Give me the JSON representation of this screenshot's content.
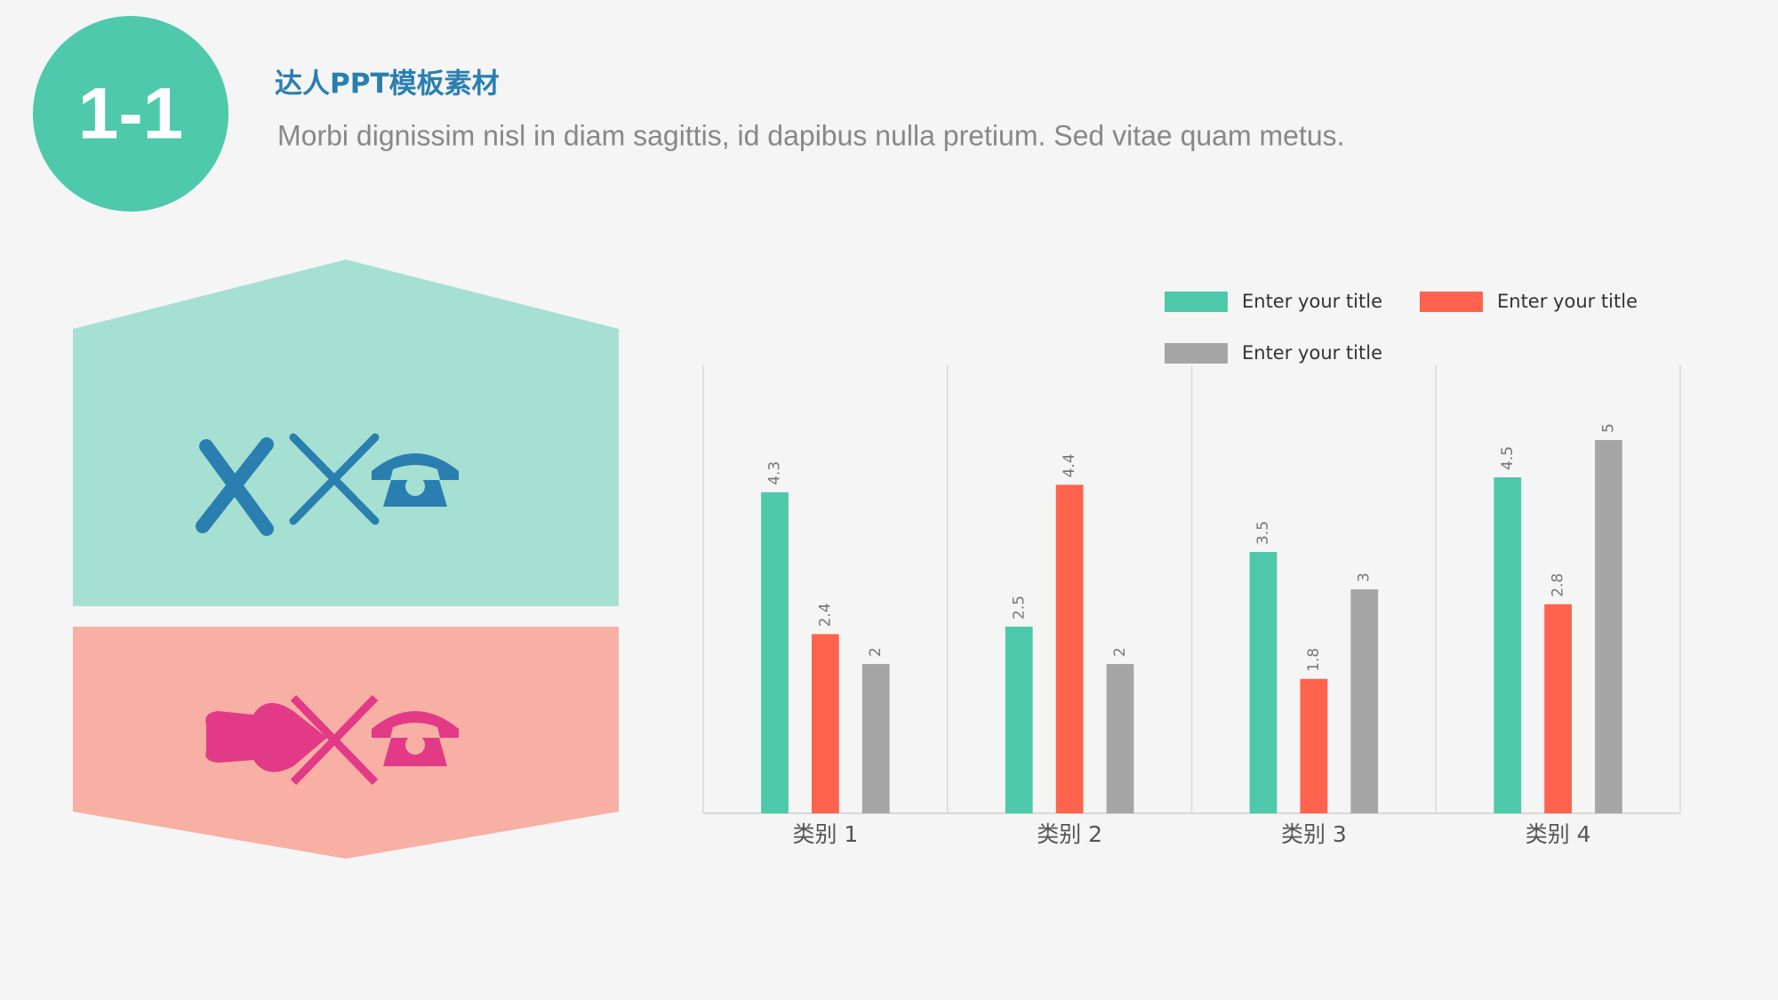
{
  "header": {
    "badge": "1-1",
    "title": "达人PPT模板素材",
    "subtitle": "Morbi dignissim nisl in diam sagittis, id dapibus nulla pretium. Sed vitae quam metus."
  },
  "chart_data": {
    "type": "bar",
    "categories": [
      "类别 1",
      "类别 2",
      "类别 3",
      "类别 4"
    ],
    "series": [
      {
        "name": "Enter your title",
        "color": "#4ec9ab",
        "values": [
          4.3,
          2.5,
          3.5,
          4.5
        ]
      },
      {
        "name": "Enter your title",
        "color": "#ff624d",
        "values": [
          2.4,
          4.4,
          1.8,
          2.8
        ]
      },
      {
        "name": "Enter your title",
        "color": "#a6a6a6",
        "values": [
          2,
          2,
          3,
          5
        ]
      }
    ],
    "ylim": [
      0,
      6
    ],
    "legend": "top-right"
  }
}
